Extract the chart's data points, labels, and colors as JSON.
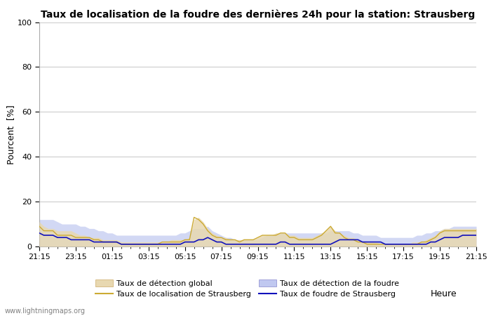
{
  "title": "Taux de localisation de la foudre des dernières 24h pour la station: Strausberg",
  "xlabel": "Heure",
  "ylabel": "Pourcent  [%]",
  "ylim": [
    0,
    100
  ],
  "yticks": [
    0,
    20,
    40,
    60,
    80,
    100
  ],
  "x_labels": [
    "21:15",
    "23:15",
    "01:15",
    "03:15",
    "05:15",
    "07:15",
    "09:15",
    "11:15",
    "13:15",
    "15:15",
    "17:15",
    "19:15",
    "21:15"
  ],
  "watermark": "www.lightningmaps.org",
  "legend": [
    {
      "label": "Taux de détection global",
      "type": "fill"
    },
    {
      "label": "Taux de localisation de Strausberg",
      "type": "line"
    },
    {
      "label": "Taux de détection de la foudre",
      "type": "fill"
    },
    {
      "label": "Taux de foudre de Strausberg",
      "type": "line"
    }
  ],
  "n_points": 97,
  "global_detection_fill": [
    11,
    9,
    8,
    8,
    7,
    7,
    7,
    7,
    6,
    5,
    5,
    4,
    4,
    4,
    3,
    3,
    3,
    3,
    2,
    2,
    2,
    2,
    2,
    2,
    2,
    2,
    2,
    2,
    2,
    3,
    3,
    3,
    3,
    4,
    12,
    13,
    11,
    8,
    6,
    5,
    4,
    4,
    3,
    3,
    3,
    3,
    3,
    3,
    4,
    5,
    5,
    5,
    6,
    6,
    6,
    5,
    5,
    4,
    4,
    4,
    4,
    5,
    6,
    7,
    9,
    7,
    6,
    5,
    4,
    4,
    3,
    2,
    2,
    2,
    2,
    1,
    1,
    1,
    1,
    1,
    1,
    1,
    2,
    2,
    2,
    3,
    4,
    5,
    7,
    8,
    8,
    8,
    8,
    8,
    8,
    8,
    8
  ],
  "localization_line": [
    9,
    7,
    7,
    7,
    5,
    5,
    5,
    5,
    4,
    4,
    4,
    4,
    3,
    3,
    2,
    2,
    2,
    2,
    1,
    1,
    1,
    1,
    1,
    1,
    1,
    1,
    1,
    2,
    2,
    2,
    2,
    2,
    3,
    3,
    13,
    12,
    10,
    7,
    5,
    4,
    4,
    3,
    3,
    3,
    2,
    3,
    3,
    3,
    4,
    5,
    5,
    5,
    5,
    6,
    6,
    4,
    4,
    3,
    3,
    3,
    3,
    4,
    5,
    7,
    9,
    6,
    6,
    4,
    3,
    3,
    2,
    2,
    1,
    1,
    1,
    1,
    1,
    1,
    1,
    1,
    1,
    1,
    1,
    1,
    2,
    2,
    3,
    4,
    6,
    7,
    7,
    7,
    7,
    7,
    7,
    7,
    7
  ],
  "lightning_detection_fill": [
    12,
    12,
    12,
    12,
    11,
    10,
    10,
    10,
    10,
    9,
    9,
    8,
    8,
    7,
    7,
    6,
    6,
    5,
    5,
    5,
    5,
    5,
    5,
    5,
    5,
    5,
    5,
    5,
    5,
    5,
    5,
    6,
    6,
    7,
    8,
    8,
    8,
    9,
    7,
    6,
    5,
    4,
    4,
    3,
    3,
    3,
    3,
    3,
    3,
    4,
    5,
    5,
    5,
    6,
    6,
    6,
    6,
    6,
    6,
    6,
    6,
    6,
    6,
    6,
    7,
    7,
    7,
    7,
    7,
    6,
    6,
    5,
    5,
    5,
    5,
    4,
    4,
    4,
    4,
    4,
    4,
    4,
    4,
    5,
    5,
    6,
    6,
    7,
    7,
    8,
    8,
    9,
    9,
    9,
    9,
    9,
    9
  ],
  "foudre_line": [
    6,
    5,
    5,
    5,
    4,
    4,
    4,
    3,
    3,
    3,
    3,
    3,
    2,
    2,
    2,
    2,
    2,
    2,
    1,
    1,
    1,
    1,
    1,
    1,
    1,
    1,
    1,
    1,
    1,
    1,
    1,
    1,
    2,
    2,
    2,
    3,
    3,
    4,
    3,
    2,
    2,
    1,
    1,
    1,
    1,
    1,
    1,
    1,
    1,
    1,
    1,
    1,
    1,
    2,
    2,
    1,
    1,
    1,
    1,
    1,
    1,
    1,
    1,
    1,
    1,
    2,
    3,
    3,
    3,
    3,
    3,
    2,
    2,
    2,
    2,
    2,
    1,
    1,
    1,
    1,
    1,
    1,
    1,
    1,
    1,
    1,
    2,
    2,
    3,
    4,
    4,
    4,
    4,
    5,
    5,
    5,
    5
  ],
  "bg_color": "#ffffff",
  "plot_bg_color": "#ffffff",
  "grid_color": "#cccccc",
  "fill_global_color": "#e8d8b0",
  "fill_global_alpha": 0.85,
  "fill_lightning_color": "#c0c8f0",
  "fill_lightning_alpha": 0.7,
  "line_localization_color": "#ccaa33",
  "line_foudre_color": "#1111bb",
  "title_fontsize": 10,
  "axis_fontsize": 9,
  "tick_fontsize": 8
}
